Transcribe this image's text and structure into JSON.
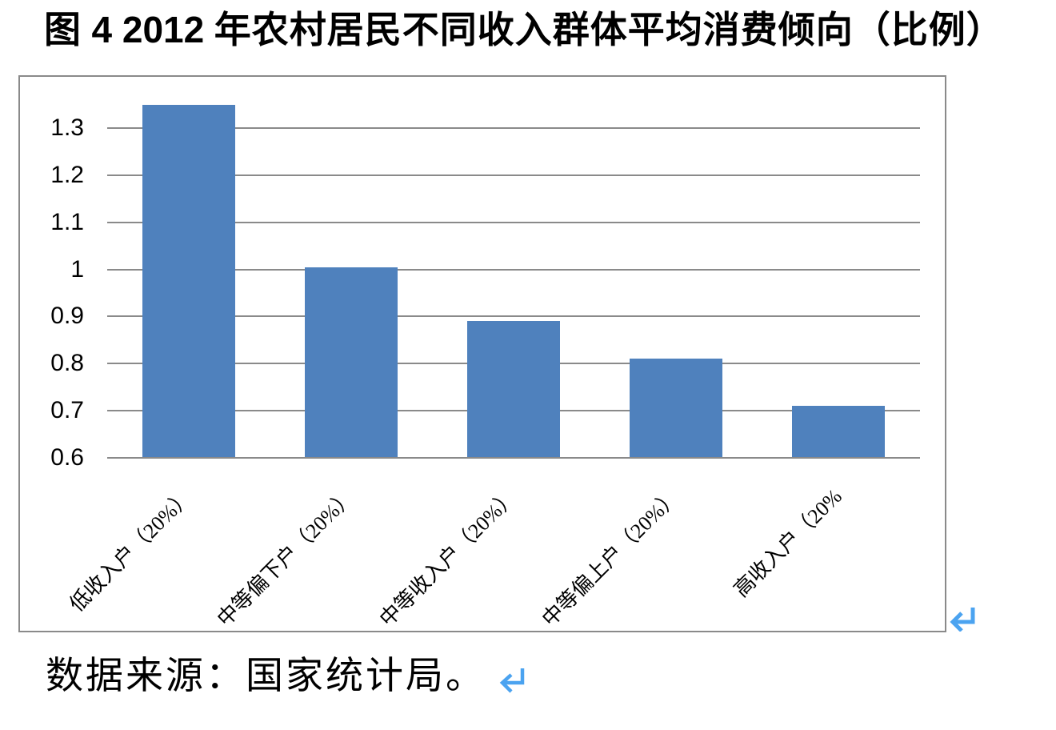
{
  "title": {
    "prefix": "图 ",
    "number": "4 2012",
    "suffix": " 年农村居民不同收入群体平均消费倾向（比例）"
  },
  "caption": "数据来源：国家统计局。",
  "colors": {
    "bar": "#4F81BD",
    "gridline": "#8a8a8a",
    "frame_border": "#8a8a8a",
    "linebreak_arrow": "#4BA3F0",
    "text": "#000000"
  },
  "icons": {
    "chart_linebreak": "return-arrow-icon",
    "caption_linebreak": "return-arrow-icon"
  },
  "chart_data": {
    "type": "bar",
    "title": "图 4 2012 年农村居民不同收入群体平均消费倾向（比例）",
    "categories": [
      "低收入户（20%）",
      "中等偏下户（20%）",
      "中等收入户（20%）",
      "中等偏上户（20%）",
      "高收入户（20%"
    ],
    "values": [
      1.35,
      1.005,
      0.89,
      0.81,
      0.71
    ],
    "xlabel": "",
    "ylabel": "",
    "ylim": [
      0.6,
      1.4
    ],
    "ytick_step": 0.1,
    "ytick_labels": [
      "1.3",
      "1.2",
      "1.1",
      "1",
      "0.9",
      "0.8",
      "0.7",
      "0.6"
    ],
    "grid": true,
    "legend": "none",
    "bar_gap_percent": 75,
    "source_note": "数据来源：国家统计局。"
  }
}
